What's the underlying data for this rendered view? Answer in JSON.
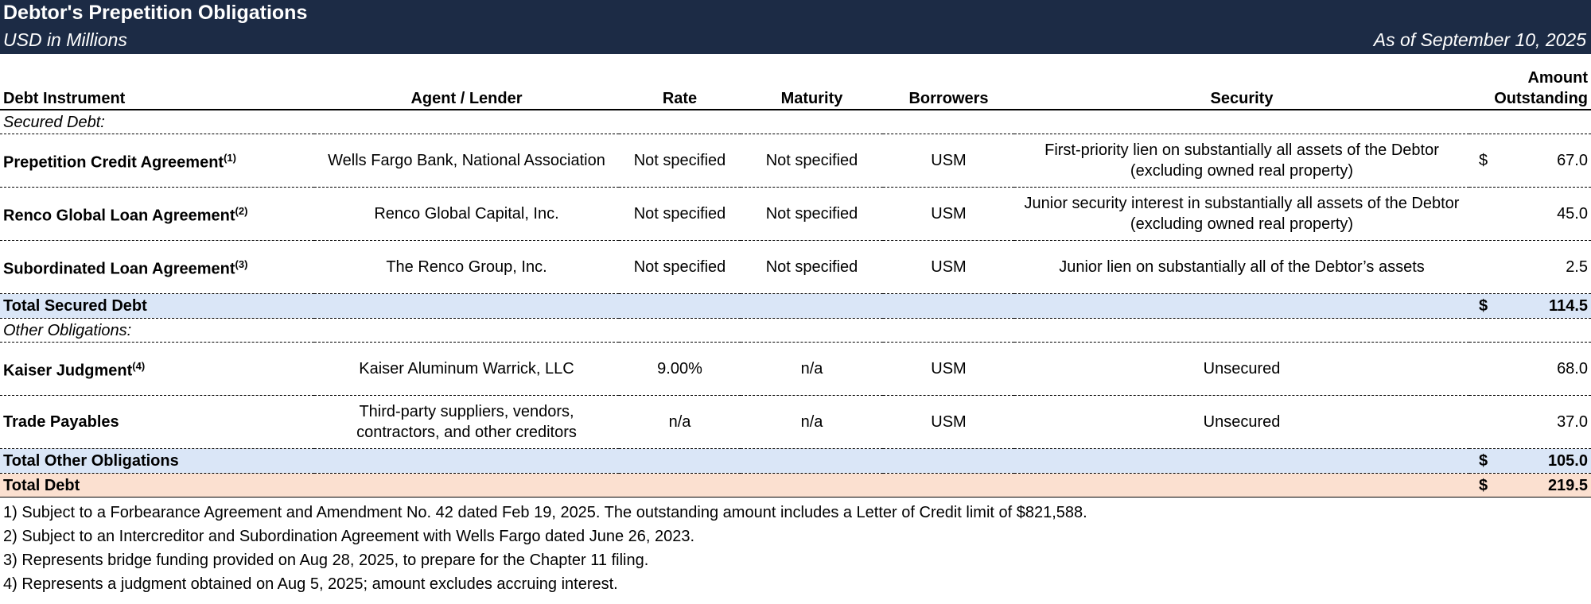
{
  "header": {
    "title": "Debtor's Prepetition Obligations",
    "subtitle": "USD in Millions",
    "as_of": "As of September 10, 2025"
  },
  "table": {
    "columns": [
      "Debt Instrument",
      "Agent / Lender",
      "Rate",
      "Maturity",
      "Borrowers",
      "Security",
      "Amount Outstanding"
    ],
    "sections": [
      {
        "label": "Secured Debt:",
        "rows": [
          {
            "instrument": "Prepetition Credit Agreement",
            "note": "(1)",
            "lender": "Wells Fargo Bank, National Association",
            "rate": "Not specified",
            "maturity": "Not specified",
            "borrowers": "USM",
            "security": "First-priority lien on substantially all assets of the Debtor (excluding owned real property)",
            "currency": "$",
            "amount": "67.0"
          },
          {
            "instrument": "Renco Global Loan Agreement",
            "note": "(2)",
            "lender": "Renco Global Capital, Inc.",
            "rate": "Not specified",
            "maturity": "Not specified",
            "borrowers": "USM",
            "security": "Junior security interest in substantially all assets of the Debtor (excluding owned real property)",
            "amount": "45.0"
          },
          {
            "instrument": "Subordinated Loan Agreement",
            "note": "(3)",
            "lender": "The Renco Group, Inc.",
            "rate": "Not specified",
            "maturity": "Not specified",
            "borrowers": "USM",
            "security": "Junior lien on substantially all of the Debtor’s assets",
            "amount": "2.5"
          }
        ],
        "total": {
          "label": "Total Secured Debt",
          "currency": "$",
          "amount": "114.5"
        }
      },
      {
        "label": "Other Obligations:",
        "rows": [
          {
            "instrument": "Kaiser Judgment",
            "note": "(4)",
            "lender": "Kaiser Aluminum Warrick, LLC",
            "rate": "9.00%",
            "maturity": "n/a",
            "borrowers": "USM",
            "security": "Unsecured",
            "amount": "68.0"
          },
          {
            "instrument": "Trade Payables",
            "lender": "Third-party suppliers, vendors, contractors, and other creditors",
            "rate": "n/a",
            "maturity": "n/a",
            "borrowers": "USM",
            "security": "Unsecured",
            "amount": "37.0"
          }
        ],
        "total": {
          "label": "Total Other Obligations",
          "currency": "$",
          "amount": "105.0"
        }
      }
    ],
    "grand_total": {
      "label": "Total Debt",
      "currency": "$",
      "amount": "219.5"
    }
  },
  "footnotes": [
    "1) Subject to a Forbearance Agreement and Amendment No. 42 dated Feb 19, 2025. The outstanding amount includes a Letter of Credit limit of $821,588.",
    "2) Subject to an Intercreditor and Subordination Agreement with Wells Fargo dated June 26, 2023.",
    "3) Represents bridge funding provided on Aug 28, 2025, to prepare for the Chapter 11 filing.",
    "4) Represents a judgment obtained on Aug 5, 2025; amount excludes accruing interest."
  ]
}
